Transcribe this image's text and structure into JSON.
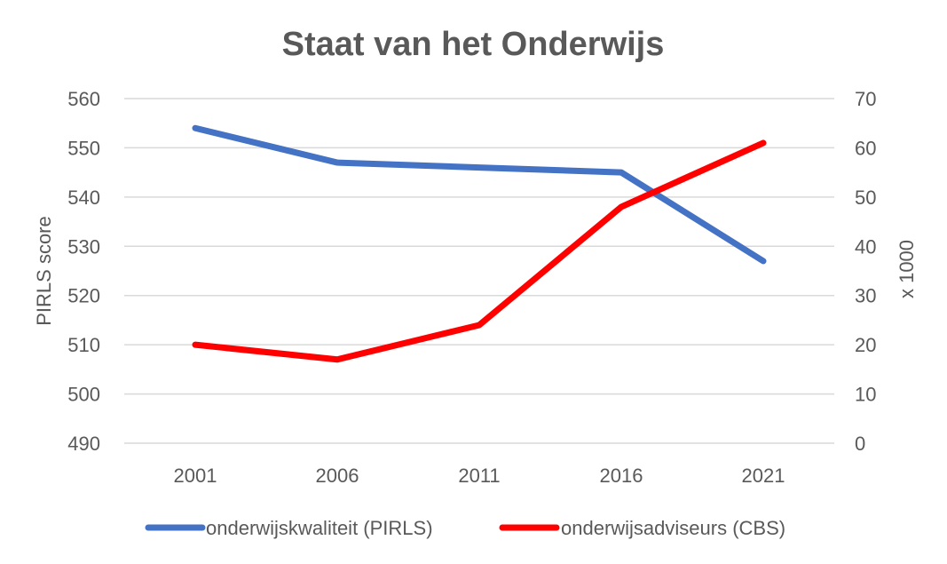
{
  "chart_data": {
    "type": "line",
    "title": "Staat van het Onderwijs",
    "categories": [
      "2001",
      "2006",
      "2011",
      "2016",
      "2021"
    ],
    "y_left": {
      "label": "PIRLS score",
      "min": 490,
      "max": 560,
      "ticks": [
        "490",
        "500",
        "510",
        "520",
        "530",
        "540",
        "550",
        "560"
      ]
    },
    "y_right": {
      "label": "x 1000",
      "min": 0,
      "max": 70,
      "ticks": [
        "0",
        "10",
        "20",
        "30",
        "40",
        "50",
        "60",
        "70"
      ]
    },
    "grid": true,
    "legend_position": "bottom",
    "series": [
      {
        "name": "onderwijskwaliteit (PIRLS)",
        "axis": "left",
        "color": "#4472C4",
        "values": [
          554,
          547,
          546,
          545,
          527
        ]
      },
      {
        "name": "onderwijsadviseurs (CBS)",
        "axis": "right",
        "color": "#FF0000",
        "values": [
          20,
          17,
          24,
          48,
          61
        ]
      }
    ]
  }
}
